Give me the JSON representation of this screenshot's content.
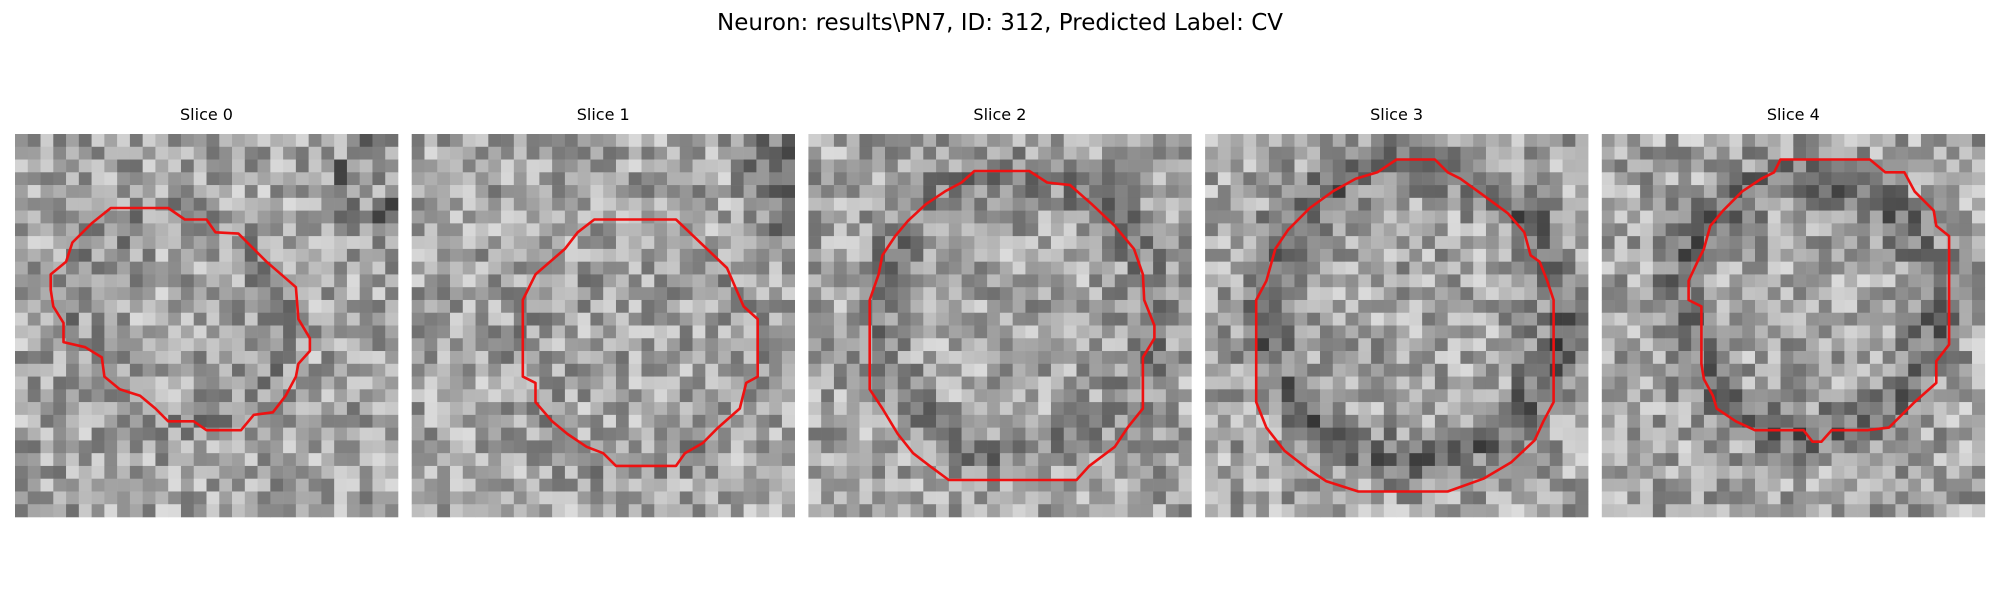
{
  "header": {
    "title": "Neuron: results\\PN7, ID: 312, Predicted Label: CV"
  },
  "panels": [
    {
      "title": "Slice 0"
    },
    {
      "title": "Slice 1"
    },
    {
      "title": "Slice 2"
    },
    {
      "title": "Slice 3"
    },
    {
      "title": "Slice 4"
    }
  ]
}
